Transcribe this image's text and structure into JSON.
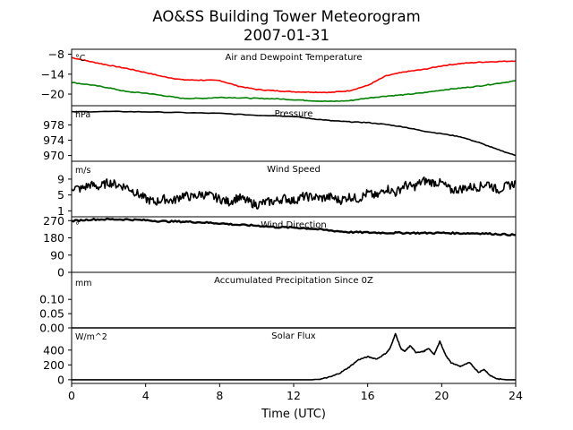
{
  "title": "AO&SS Building Tower Meteorogram",
  "subtitle": "2007-01-31",
  "chart_data": {
    "type": "line",
    "xlabel": "Time (UTC)",
    "xlim": [
      0,
      24
    ],
    "xticks": [
      0,
      4,
      8,
      12,
      16,
      20,
      24
    ],
    "panels": [
      {
        "title": "Air and Dewpoint Temperature",
        "unit": "°C",
        "ylim": [
          -23.5,
          -6.5
        ],
        "yticks": [
          -8,
          -14,
          -20
        ],
        "series": [
          {
            "color": "#ff0000",
            "x": [
              0,
              1,
              2,
              3,
              4,
              5,
              6,
              7,
              8,
              9,
              10,
              11,
              12,
              13,
              14,
              15,
              16,
              17,
              18,
              19,
              20,
              21,
              22,
              23,
              24
            ],
            "y": [
              -9,
              -10.2,
              -11.3,
              -12.3,
              -13.5,
              -14.8,
              -15.7,
              -15.8,
              -15.9,
              -17.6,
              -18.6,
              -19,
              -19.3,
              -19.4,
              -19.5,
              -19,
              -17.4,
              -14.5,
              -13.3,
              -12.6,
              -11.5,
              -10.8,
              -10.4,
              -10.2,
              -10
            ]
          },
          {
            "color": "#008000",
            "x": [
              0,
              1,
              2,
              3,
              4,
              5,
              6,
              7,
              8,
              9,
              10,
              11,
              12,
              13,
              14,
              15,
              16,
              17,
              18,
              19,
              20,
              21,
              22,
              23,
              24
            ],
            "y": [
              -16.5,
              -17.2,
              -18.1,
              -19.3,
              -19.7,
              -20.5,
              -21.3,
              -21.3,
              -21,
              -21.1,
              -21.3,
              -21.4,
              -21.7,
              -22,
              -22.2,
              -22,
              -21.2,
              -20.6,
              -20.2,
              -19.6,
              -18.8,
              -18.2,
              -17.6,
              -16.8,
              -16
            ]
          }
        ]
      },
      {
        "title": "Pressure",
        "unit": "hPa",
        "ylim": [
          968.5,
          983
        ],
        "yticks": [
          978,
          974,
          970
        ],
        "series": [
          {
            "color": "#000000",
            "x": [
              0,
              2,
              4,
              6,
              8,
              10,
              11,
              12,
              13,
              14,
              15,
              16,
              17,
              18,
              19,
              20,
              21,
              22,
              23,
              24
            ],
            "y": [
              981.4,
              981.5,
              981.4,
              981.2,
              981,
              980.5,
              980.4,
              980.2,
              979.6,
              979.1,
              978.8,
              978.6,
              978.1,
              977.4,
              976.4,
              975.7,
              974.9,
              973.4,
              971.6,
              970
            ]
          }
        ]
      },
      {
        "title": "Wind Speed",
        "unit": "m/s",
        "ylim": [
          -0.5,
          13.5
        ],
        "yticks": [
          9,
          5,
          1
        ],
        "series": [
          {
            "color": "#000000",
            "x": [
              0,
              0.5,
              1,
              1.5,
              2,
              2.5,
              3,
              3.5,
              4,
              4.5,
              5,
              5.5,
              6,
              6.5,
              7,
              7.5,
              8,
              8.5,
              9,
              9.5,
              10,
              10.5,
              11,
              11.5,
              12,
              12.5,
              13,
              13.5,
              14,
              14.5,
              15,
              15.5,
              16,
              16.5,
              17,
              17.5,
              18,
              18.5,
              19,
              19.5,
              20,
              20.5,
              21,
              21.5,
              22,
              22.5,
              23,
              23.5,
              24
            ],
            "y": [
              7,
              6.5,
              7.6,
              7,
              8.2,
              7.5,
              7,
              5.5,
              4,
              3.2,
              4,
              3.5,
              5,
              4.4,
              5.2,
              4.8,
              4,
              3.2,
              4.4,
              3.4,
              2.5,
              3.2,
              3.4,
              4.2,
              3.5,
              4.6,
              4.5,
              4.2,
              4.5,
              3.6,
              4.6,
              4,
              5.5,
              4.6,
              6.8,
              5.5,
              7.5,
              7,
              8.6,
              8.2,
              8,
              6.2,
              6.5,
              7,
              7,
              8,
              6.2,
              7.2,
              8
            ]
          }
        ]
      },
      {
        "title": "Wind Direction",
        "unit": "°",
        "ylim": [
          0,
          290
        ],
        "yticks": [
          270,
          180,
          90,
          0
        ],
        "series": [
          {
            "color": "#000000",
            "x": [
              0,
              1,
              2,
              3,
              4,
              5,
              6,
              7,
              8,
              9,
              10,
              11,
              12,
              13,
              14,
              15,
              16,
              17,
              18,
              19,
              20,
              21,
              22,
              23,
              24
            ],
            "y": [
              268,
              276,
              277,
              276,
              272,
              266,
              265,
              261,
              256,
              248,
              244,
              236,
              234,
              228,
              218,
              210,
              208,
              206,
              206,
              205,
              206,
              204,
              204,
              200,
              195
            ]
          }
        ]
      },
      {
        "title": "Accumulated Precipitation Since 0Z",
        "unit": "mm",
        "ylim": [
          0,
          0.195
        ],
        "yticks": [
          0.1,
          0.05,
          0.0
        ],
        "series": [
          {
            "color": "#000000",
            "x": [
              0,
              24
            ],
            "y": [
              0,
              0
            ]
          }
        ]
      },
      {
        "title": "Solar Flux",
        "unit": "W/m^2",
        "ylim": [
          -50,
          700
        ],
        "yticks": [
          400,
          200,
          0
        ],
        "series": [
          {
            "color": "#000000",
            "x": [
              0,
              12,
              13,
              13.5,
              14,
              14.5,
              15,
              15.5,
              16,
              16.5,
              17,
              17.2,
              17.5,
              17.8,
              18,
              18.3,
              18.6,
              19,
              19.3,
              19.6,
              19.9,
              20.2,
              20.5,
              21,
              21.5,
              22,
              22.3,
              22.6,
              23,
              23.5,
              24
            ],
            "y": [
              0,
              0,
              0,
              10,
              40,
              90,
              170,
              270,
              310,
              280,
              360,
              420,
              620,
              420,
              380,
              460,
              370,
              380,
              420,
              340,
              520,
              340,
              230,
              180,
              230,
              100,
              140,
              60,
              10,
              0,
              0
            ]
          }
        ]
      }
    ]
  }
}
